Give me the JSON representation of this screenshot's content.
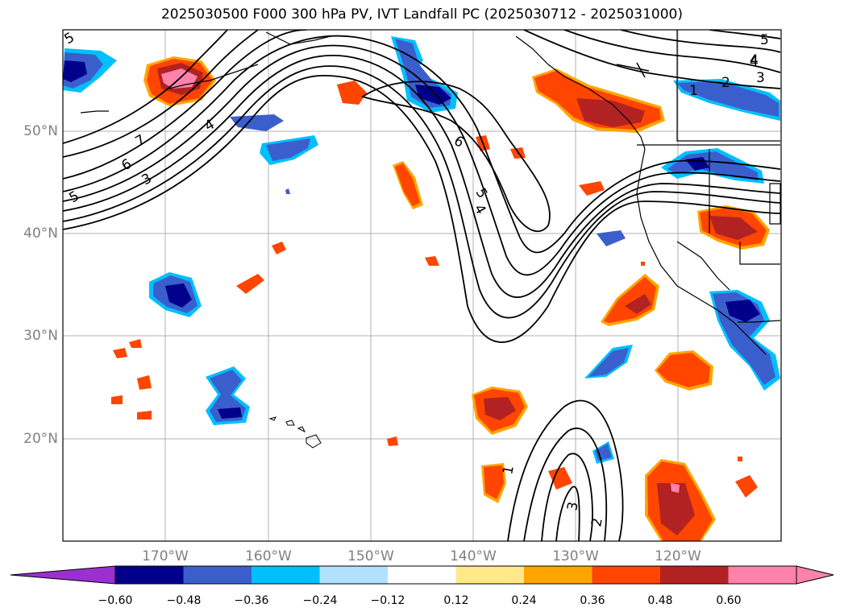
{
  "title": "2025030500 F000 300 hPa PV, IVT Landfall PC (2025030712 - 2025031000)",
  "latitude_labels": [
    "50°N",
    "40°N",
    "30°N",
    "20°N"
  ],
  "longitude_labels": [
    "170°W",
    "160°W",
    "150°W",
    "140°W",
    "130°W",
    "120°W"
  ],
  "contour_labels": [
    {
      "id": "c1",
      "text": "5"
    },
    {
      "id": "c2",
      "text": "4"
    },
    {
      "id": "c3",
      "text": "3"
    },
    {
      "id": "c4",
      "text": "2"
    },
    {
      "id": "c5",
      "text": "1"
    },
    {
      "id": "c6",
      "text": "7"
    },
    {
      "id": "c7",
      "text": "6"
    },
    {
      "id": "c8",
      "text": "3"
    },
    {
      "id": "c9",
      "text": "5"
    },
    {
      "id": "c10",
      "text": "4"
    },
    {
      "id": "c11",
      "text": "6"
    },
    {
      "id": "c12",
      "text": "5"
    },
    {
      "id": "c13",
      "text": "4"
    },
    {
      "id": "c14",
      "text": "1"
    },
    {
      "id": "c15",
      "text": "3"
    },
    {
      "id": "c16",
      "text": "2"
    },
    {
      "id": "c17",
      "text": "4"
    },
    {
      "id": "c18",
      "text": "5"
    }
  ],
  "colorbar": {
    "ticks": [
      "−0.60",
      "−0.48",
      "−0.36",
      "−0.24",
      "−0.12",
      "0.12",
      "0.24",
      "0.36",
      "0.48",
      "0.60"
    ],
    "colors": [
      "#9b30d0",
      "#00008b",
      "#3a5fcd",
      "#00bfff",
      "#b0e2ff",
      "#ffffff",
      "#ffe88a",
      "#ffa500",
      "#ff4500",
      "#b22222",
      "#ff82ab",
      "#ff82ab"
    ]
  }
}
